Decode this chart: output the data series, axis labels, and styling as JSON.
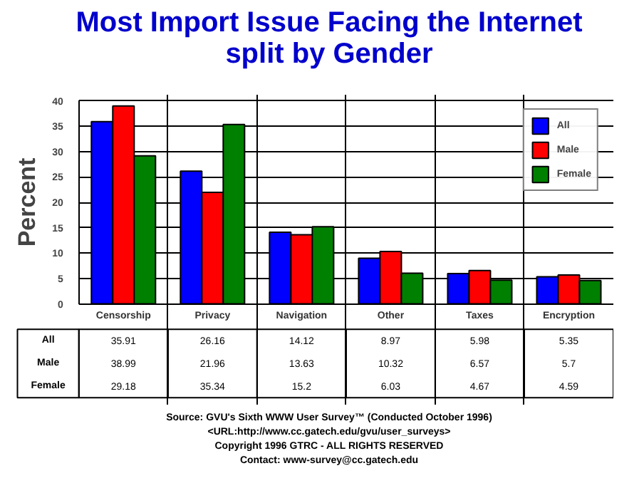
{
  "chart_data": {
    "type": "bar",
    "title": "Most Import Issue Facing the Internet",
    "subtitle": "split by Gender",
    "ylabel": "Percent",
    "categories": [
      "Censorship",
      "Privacy",
      "Navigation",
      "Other",
      "Taxes",
      "Encryption"
    ],
    "series": [
      {
        "name": "All",
        "color": "#0000ff",
        "values": [
          35.91,
          26.16,
          14.12,
          8.97,
          5.98,
          5.35
        ]
      },
      {
        "name": "Male",
        "color": "#ff0000",
        "values": [
          38.99,
          21.96,
          13.63,
          10.32,
          6.57,
          5.7
        ]
      },
      {
        "name": "Female",
        "color": "#008000",
        "values": [
          29.18,
          35.34,
          15.2,
          6.03,
          4.67,
          4.59
        ]
      }
    ],
    "ylim": [
      0,
      40
    ],
    "yticks": [
      0,
      5,
      10,
      15,
      20,
      25,
      30,
      35,
      40
    ],
    "grid": true,
    "legend": "top right",
    "data_labels": true,
    "annotations": [
      "Source: GVU's Sixth WWW User Survey™ (Conducted October 1996)",
      "<URL:http://www.cc.gatech.edu/gvu/user_surveys>",
      "Copyright 1996 GTRC - ALL RIGHTS RESERVED",
      "Contact: www-survey@cc.gatech.edu"
    ]
  }
}
